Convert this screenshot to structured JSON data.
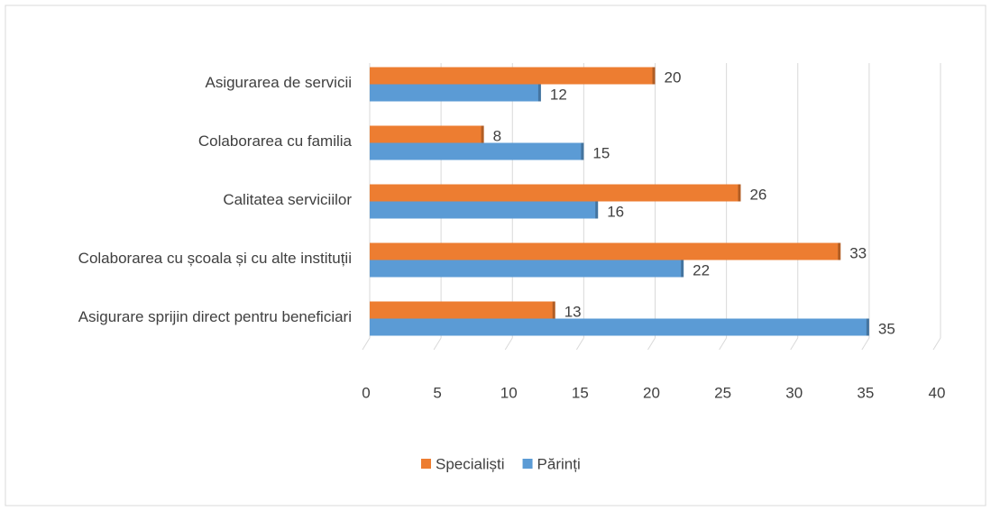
{
  "chart_data": {
    "type": "bar",
    "orientation": "horizontal",
    "categories": [
      "Asigurarea de servicii",
      "Colaborarea cu familia",
      "Calitatea serviciilor",
      "Colaborarea cu școala și cu alte instituții",
      "Asigurare sprijin direct pentru beneficiari"
    ],
    "series": [
      {
        "name": "Specialiști",
        "color": "#ed7d31",
        "values": [
          20,
          8,
          26,
          33,
          13
        ]
      },
      {
        "name": "Părinți",
        "color": "#5b9bd5",
        "values": [
          12,
          15,
          16,
          22,
          35
        ]
      }
    ],
    "xlim": [
      0,
      40
    ],
    "xticks": [
      0,
      5,
      10,
      15,
      20,
      25,
      30,
      35,
      40
    ],
    "grid": true,
    "legend": "bottom"
  }
}
